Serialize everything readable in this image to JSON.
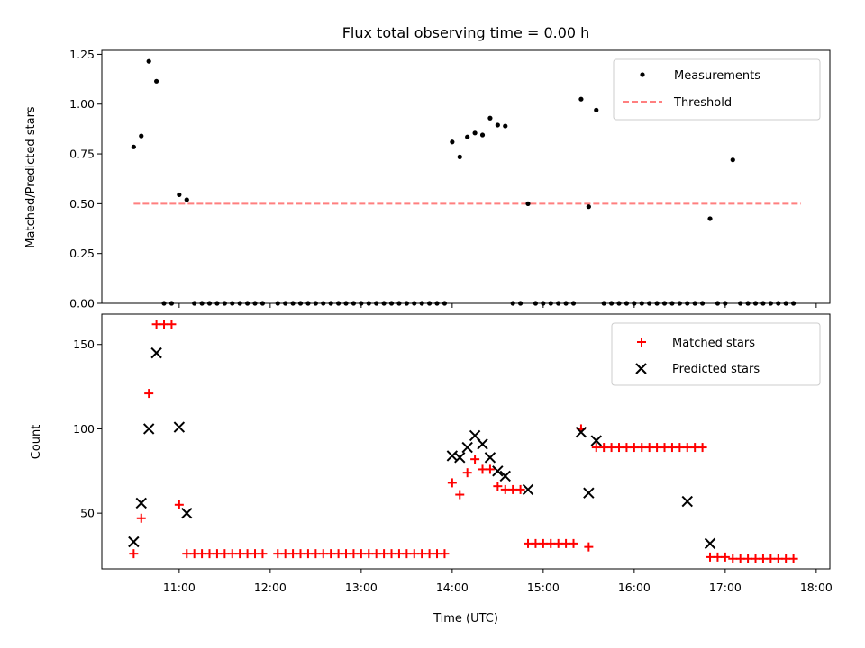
{
  "chart_data": [
    {
      "type": "scatter",
      "title": "Flux total observing time = 0.00 h",
      "ylabel": "Matched/Predicted stars",
      "ylim": [
        0,
        1.27
      ],
      "yticks": [
        "0.00",
        "0.25",
        "0.50",
        "0.75",
        "1.00",
        "1.25"
      ],
      "grid": false,
      "legend_placement": "top-right",
      "series": [
        {
          "name": "Measurements",
          "marker": "dot",
          "color": "#000000",
          "x": [
            "10:30",
            "10:35",
            "10:40",
            "10:45",
            "10:50",
            "10:55",
            "11:00",
            "11:05",
            "11:10",
            "11:15",
            "11:20",
            "11:25",
            "11:30",
            "11:35",
            "11:40",
            "11:45",
            "11:50",
            "11:55",
            "12:05",
            "12:10",
            "12:15",
            "12:20",
            "12:25",
            "12:30",
            "12:35",
            "12:40",
            "12:45",
            "12:50",
            "12:55",
            "13:00",
            "13:05",
            "13:10",
            "13:15",
            "13:20",
            "13:25",
            "13:30",
            "13:35",
            "13:40",
            "13:45",
            "13:50",
            "13:55",
            "14:00",
            "14:05",
            "14:10",
            "14:15",
            "14:20",
            "14:25",
            "14:30",
            "14:35",
            "14:40",
            "14:45",
            "14:50",
            "14:55",
            "15:00",
            "15:05",
            "15:10",
            "15:15",
            "15:20",
            "15:25",
            "15:30",
            "15:35",
            "15:40",
            "15:45",
            "15:50",
            "15:55",
            "16:00",
            "16:05",
            "16:10",
            "16:15",
            "16:20",
            "16:25",
            "16:30",
            "16:35",
            "16:40",
            "16:45",
            "16:50",
            "16:55",
            "17:00",
            "17:05",
            "17:10",
            "17:15",
            "17:20",
            "17:25",
            "17:30",
            "17:35",
            "17:40",
            "17:45"
          ],
          "y": [
            0.785,
            0.84,
            1.215,
            1.115,
            0,
            0,
            0.545,
            0.52,
            0,
            0,
            0,
            0,
            0,
            0,
            0,
            0,
            0,
            0,
            0,
            0,
            0,
            0,
            0,
            0,
            0,
            0,
            0,
            0,
            0,
            0,
            0,
            0,
            0,
            0,
            0,
            0,
            0,
            0,
            0,
            0,
            0,
            0.81,
            0.735,
            0.835,
            0.855,
            0.845,
            0.93,
            0.895,
            0.89,
            0,
            0,
            0.5,
            0,
            0,
            0,
            0,
            0,
            0,
            1.025,
            0.485,
            0.97,
            0,
            0,
            0,
            0,
            0,
            0,
            0,
            0,
            0,
            0,
            0,
            0,
            0,
            0,
            0.425,
            0,
            0,
            0.72,
            0,
            0,
            0,
            0,
            0,
            0,
            0,
            0
          ]
        },
        {
          "name": "Threshold",
          "style": "dashed",
          "color": "#ff7f7f",
          "x": [
            "10:30",
            "17:50"
          ],
          "y": [
            0.5,
            0.5
          ]
        }
      ]
    },
    {
      "type": "scatter",
      "xlabel": "Time (UTC)",
      "ylabel": "Count",
      "ylim": [
        17,
        168
      ],
      "yticks": [
        "50",
        "100",
        "150"
      ],
      "xlim": [
        "10:09",
        "18:09"
      ],
      "xticks": [
        "11:00",
        "12:00",
        "13:00",
        "14:00",
        "15:00",
        "16:00",
        "17:00",
        "18:00"
      ],
      "grid": false,
      "legend_placement": "top-right",
      "series": [
        {
          "name": "Matched stars",
          "marker": "plus",
          "color": "#ff0000",
          "x": [
            "10:30",
            "10:35",
            "10:40",
            "10:45",
            "10:50",
            "10:55",
            "11:00",
            "11:05",
            "11:10",
            "11:15",
            "11:20",
            "11:25",
            "11:30",
            "11:35",
            "11:40",
            "11:45",
            "11:50",
            "11:55",
            "12:05",
            "12:10",
            "12:15",
            "12:20",
            "12:25",
            "12:30",
            "12:35",
            "12:40",
            "12:45",
            "12:50",
            "12:55",
            "13:00",
            "13:05",
            "13:10",
            "13:15",
            "13:20",
            "13:25",
            "13:30",
            "13:35",
            "13:40",
            "13:45",
            "13:50",
            "13:55",
            "14:00",
            "14:05",
            "14:10",
            "14:15",
            "14:20",
            "14:25",
            "14:30",
            "14:35",
            "14:40",
            "14:45",
            "14:50",
            "14:55",
            "15:00",
            "15:05",
            "15:10",
            "15:15",
            "15:20",
            "15:25",
            "15:30",
            "15:35",
            "15:40",
            "15:45",
            "15:50",
            "15:55",
            "16:00",
            "16:05",
            "16:10",
            "16:15",
            "16:20",
            "16:25",
            "16:30",
            "16:35",
            "16:40",
            "16:45",
            "16:50",
            "16:55",
            "17:00",
            "17:05",
            "17:10",
            "17:15",
            "17:20",
            "17:25",
            "17:30",
            "17:35",
            "17:40",
            "17:45"
          ],
          "y": [
            26,
            47,
            121,
            162,
            162,
            162,
            55,
            26,
            26,
            26,
            26,
            26,
            26,
            26,
            26,
            26,
            26,
            26,
            26,
            26,
            26,
            26,
            26,
            26,
            26,
            26,
            26,
            26,
            26,
            26,
            26,
            26,
            26,
            26,
            26,
            26,
            26,
            26,
            26,
            26,
            26,
            68,
            61,
            74,
            82,
            76,
            76,
            66,
            64,
            64,
            64,
            32,
            32,
            32,
            32,
            32,
            32,
            32,
            100,
            30,
            89,
            89,
            89,
            89,
            89,
            89,
            89,
            89,
            89,
            89,
            89,
            89,
            89,
            89,
            89,
            24,
            24,
            24,
            23,
            23,
            23,
            23,
            23,
            23,
            23,
            23,
            23
          ]
        },
        {
          "name": "Predicted stars",
          "marker": "x",
          "color": "#000000",
          "x": [
            "10:30",
            "10:35",
            "10:40",
            "10:45",
            "11:00",
            "11:05",
            "14:00",
            "14:05",
            "14:10",
            "14:15",
            "14:20",
            "14:25",
            "14:30",
            "14:35",
            "14:50",
            "15:25",
            "15:30",
            "15:35",
            "16:35",
            "16:50"
          ],
          "y": [
            33,
            56,
            100,
            145,
            101,
            50,
            84,
            83,
            89,
            96,
            91,
            83,
            75,
            72,
            64,
            98,
            62,
            93,
            57,
            32
          ]
        }
      ]
    }
  ]
}
